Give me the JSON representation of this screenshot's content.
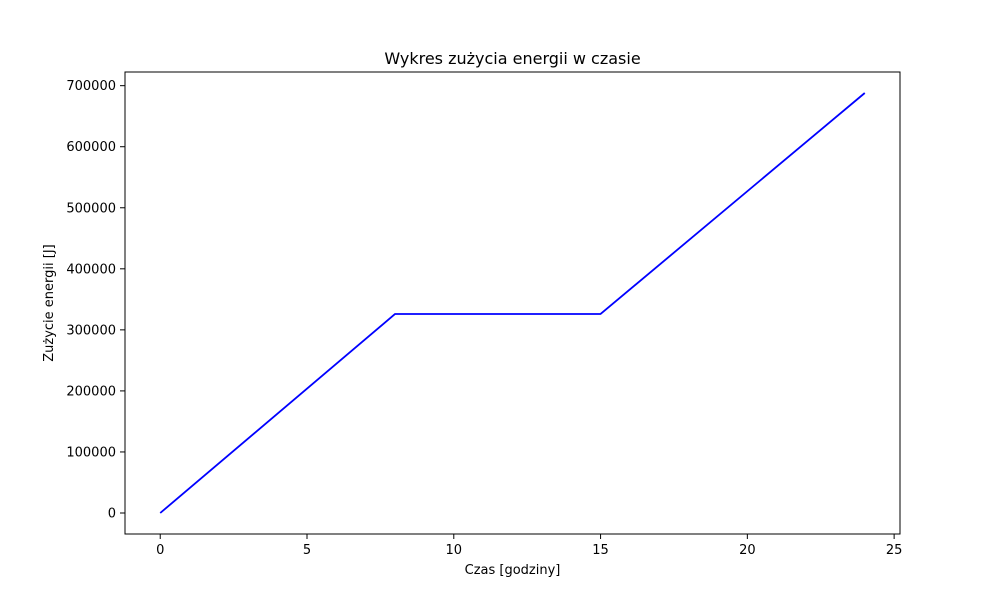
{
  "chart_data": {
    "type": "line",
    "title": "Wykres zużycia energii w czasie",
    "xlabel": "Czas [godziny]",
    "ylabel": "Zużycie energii [J]",
    "xlim": [
      -1.2,
      25.2
    ],
    "ylim": [
      -34400,
      722400
    ],
    "xticks": [
      0,
      5,
      10,
      15,
      20,
      25
    ],
    "yticks": [
      0,
      100000,
      200000,
      300000,
      400000,
      500000,
      600000,
      700000
    ],
    "grid": false,
    "legend": "none",
    "series": [
      {
        "color": "#0000ff",
        "x": [
          0,
          8,
          15,
          24
        ],
        "y": [
          0,
          326000,
          326000,
          688000
        ]
      }
    ]
  }
}
